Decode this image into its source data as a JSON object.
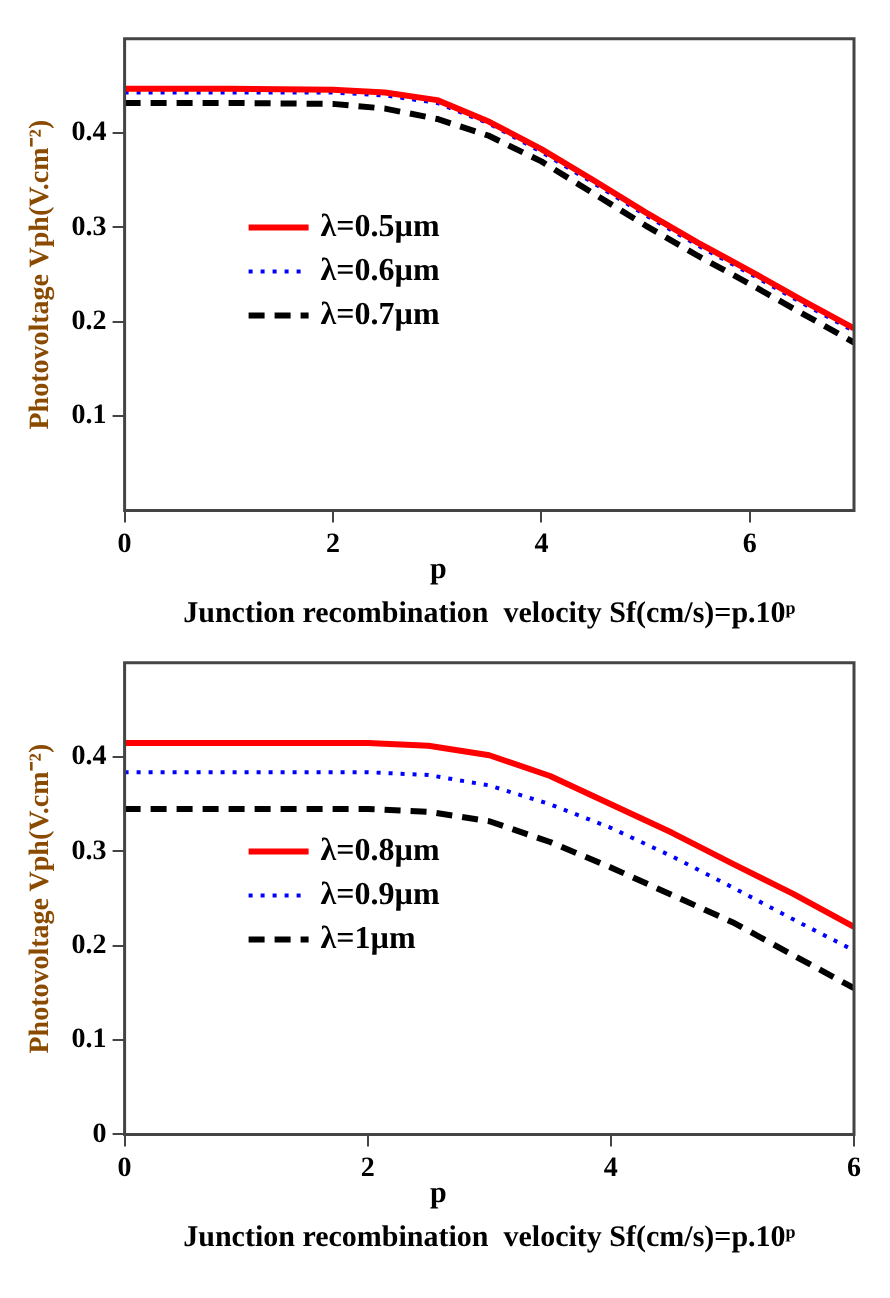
{
  "chart_data": [
    {
      "type": "line",
      "xlabel": "Junction recombination  velocity Sf(cm/s)=p.10ᵖ",
      "ylabel": "Photovoltage Vph(V.cm⁻²)",
      "annotations": [
        "p"
      ],
      "x": [
        0,
        1,
        2,
        2.5,
        3,
        3.5,
        4,
        4.5,
        5,
        5.5,
        6,
        6.5,
        7
      ],
      "xlim": [
        0,
        7
      ],
      "xticks": [
        0,
        2,
        4,
        6
      ],
      "ylim": [
        0,
        0.5
      ],
      "yticks": [
        0.1,
        0.2,
        0.3,
        0.4
      ],
      "grid": false,
      "legend": "top left",
      "marker": "none",
      "series": [
        {
          "name": "λ=0.5µm",
          "color": "#ff0000",
          "line_style": "solid",
          "values": [
            0.447,
            0.447,
            0.446,
            0.443,
            0.435,
            0.412,
            0.383,
            0.35,
            0.316,
            0.284,
            0.254,
            0.223,
            0.193
          ]
        },
        {
          "name": "λ=0.6µm",
          "color": "#0000ff",
          "line_style": "dotted",
          "values": [
            0.443,
            0.443,
            0.443,
            0.44,
            0.432,
            0.41,
            0.38,
            0.347,
            0.313,
            0.281,
            0.251,
            0.22,
            0.19
          ]
        },
        {
          "name": "λ=0.7µm",
          "color": "#000000",
          "line_style": "dashed",
          "values": [
            0.432,
            0.432,
            0.431,
            0.426,
            0.415,
            0.397,
            0.37,
            0.336,
            0.302,
            0.27,
            0.24,
            0.209,
            0.178
          ]
        }
      ]
    },
    {
      "type": "line",
      "xlabel": "Junction recombination  velocity Sf(cm/s)=p.10ᵖ",
      "ylabel": "Photovoltage Vph(V.cm⁻²)",
      "annotations": [
        "p"
      ],
      "x": [
        0,
        1,
        2,
        2.5,
        3,
        3.5,
        4,
        4.5,
        5,
        5.5,
        6
      ],
      "xlim": [
        0,
        6
      ],
      "xticks": [
        0,
        2,
        4,
        6
      ],
      "ylim": [
        0,
        0.5
      ],
      "yticks": [
        0,
        0.1,
        0.2,
        0.3,
        0.4
      ],
      "grid": false,
      "legend": "top left",
      "marker": "none",
      "series": [
        {
          "name": "λ=0.8µm",
          "color": "#ff0000",
          "line_style": "solid",
          "values": [
            0.415,
            0.415,
            0.415,
            0.412,
            0.402,
            0.38,
            0.35,
            0.32,
            0.287,
            0.255,
            0.22
          ]
        },
        {
          "name": "λ=0.9µm",
          "color": "#0000ff",
          "line_style": "dotted",
          "values": [
            0.384,
            0.384,
            0.384,
            0.381,
            0.37,
            0.35,
            0.325,
            0.295,
            0.262,
            0.228,
            0.195
          ]
        },
        {
          "name": "λ=1µm",
          "color": "#000000",
          "line_style": "dashed",
          "values": [
            0.345,
            0.345,
            0.345,
            0.342,
            0.332,
            0.31,
            0.283,
            0.254,
            0.225,
            0.19,
            0.155
          ]
        }
      ]
    }
  ]
}
